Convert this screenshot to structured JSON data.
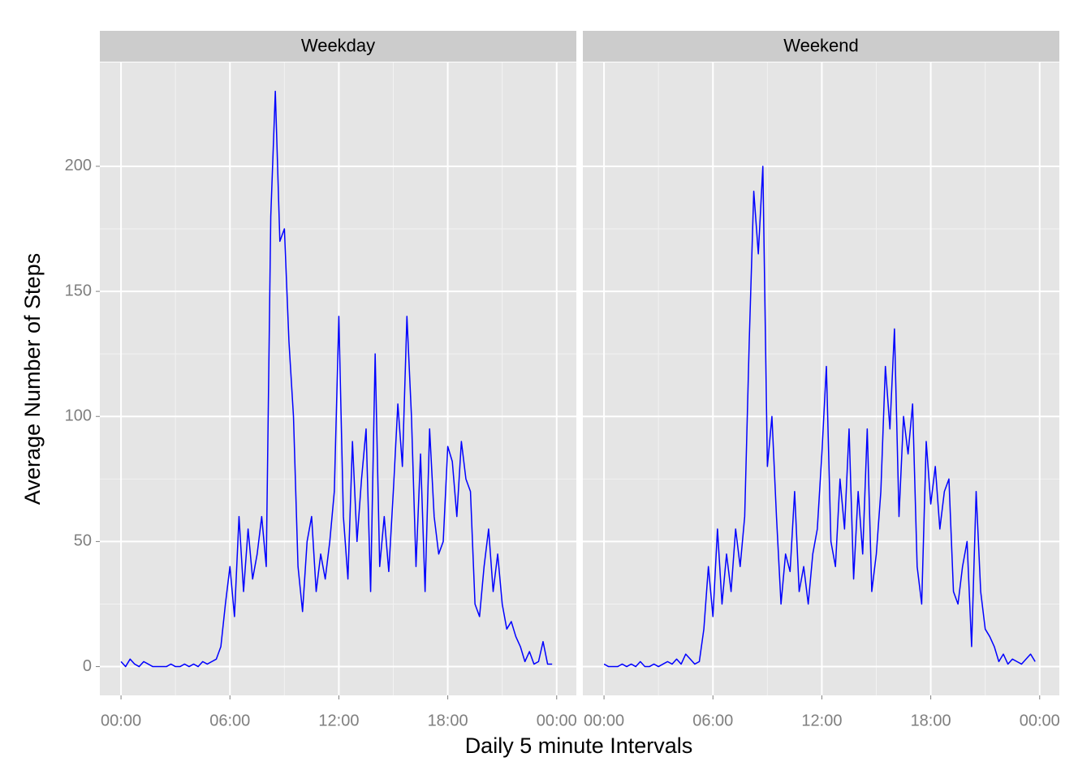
{
  "chart_data": [
    {
      "type": "line",
      "title": "Weekday",
      "xlabel": "Daily 5 minute Intervals",
      "ylabel": "Average Number of Steps",
      "color": "#0000ff",
      "grid": true,
      "xlim": [
        -70,
        1505
      ],
      "ylim": [
        -11.5,
        241.5
      ],
      "xticks": [
        {
          "value": 0,
          "label": "00:00"
        },
        {
          "value": 360,
          "label": "06:00"
        },
        {
          "value": 720,
          "label": "12:00"
        },
        {
          "value": 1080,
          "label": "18:00"
        },
        {
          "value": 1440,
          "label": "00:00"
        }
      ],
      "yticks": [
        0,
        50,
        100,
        150,
        200
      ],
      "x": [
        0,
        15,
        30,
        45,
        60,
        75,
        90,
        105,
        120,
        135,
        150,
        165,
        180,
        195,
        210,
        225,
        240,
        255,
        270,
        285,
        300,
        315,
        330,
        345,
        360,
        375,
        390,
        405,
        420,
        435,
        450,
        465,
        480,
        495,
        510,
        525,
        540,
        555,
        570,
        585,
        600,
        615,
        630,
        645,
        660,
        675,
        690,
        705,
        720,
        735,
        750,
        765,
        780,
        795,
        810,
        825,
        840,
        855,
        870,
        885,
        900,
        915,
        930,
        945,
        960,
        975,
        990,
        1005,
        1020,
        1035,
        1050,
        1065,
        1080,
        1095,
        1110,
        1125,
        1140,
        1155,
        1170,
        1185,
        1200,
        1215,
        1230,
        1245,
        1260,
        1275,
        1290,
        1305,
        1320,
        1335,
        1350,
        1365,
        1380,
        1395,
        1410,
        1425
      ],
      "values": [
        2,
        0,
        3,
        1,
        0,
        2,
        1,
        0,
        0,
        0,
        0,
        1,
        0,
        0,
        1,
        0,
        1,
        0,
        2,
        1,
        2,
        3,
        8,
        25,
        40,
        20,
        60,
        30,
        55,
        35,
        45,
        60,
        40,
        180,
        230,
        170,
        175,
        130,
        100,
        40,
        22,
        50,
        60,
        30,
        45,
        35,
        50,
        70,
        140,
        60,
        35,
        90,
        50,
        75,
        95,
        30,
        125,
        40,
        60,
        38,
        70,
        105,
        80,
        140,
        100,
        40,
        85,
        30,
        95,
        60,
        45,
        50,
        88,
        82,
        60,
        90,
        75,
        70,
        25,
        20,
        40,
        55,
        30,
        45,
        25,
        15,
        18,
        12,
        8,
        2,
        6,
        1,
        2,
        10,
        1,
        1
      ]
    },
    {
      "type": "line",
      "title": "Weekend",
      "color": "#0000ff",
      "grid": true,
      "xlim": [
        -70,
        1505
      ],
      "ylim": [
        -11.5,
        241.5
      ],
      "xticks": [
        {
          "value": 0,
          "label": "00:00"
        },
        {
          "value": 360,
          "label": "06:00"
        },
        {
          "value": 720,
          "label": "12:00"
        },
        {
          "value": 1080,
          "label": "18:00"
        },
        {
          "value": 1440,
          "label": "00:00"
        }
      ],
      "yticks": [
        0,
        50,
        100,
        150,
        200
      ],
      "x": [
        0,
        15,
        30,
        45,
        60,
        75,
        90,
        105,
        120,
        135,
        150,
        165,
        180,
        195,
        210,
        225,
        240,
        255,
        270,
        285,
        300,
        315,
        330,
        345,
        360,
        375,
        390,
        405,
        420,
        435,
        450,
        465,
        480,
        495,
        510,
        525,
        540,
        555,
        570,
        585,
        600,
        615,
        630,
        645,
        660,
        675,
        690,
        705,
        720,
        735,
        750,
        765,
        780,
        795,
        810,
        825,
        840,
        855,
        870,
        885,
        900,
        915,
        930,
        945,
        960,
        975,
        990,
        1005,
        1020,
        1035,
        1050,
        1065,
        1080,
        1095,
        1110,
        1125,
        1140,
        1155,
        1170,
        1185,
        1200,
        1215,
        1230,
        1245,
        1260,
        1275,
        1290,
        1305,
        1320,
        1335,
        1350,
        1365,
        1380,
        1395,
        1410,
        1425
      ],
      "values": [
        1,
        0,
        0,
        0,
        1,
        0,
        1,
        0,
        2,
        0,
        0,
        1,
        0,
        1,
        2,
        1,
        3,
        1,
        5,
        3,
        1,
        2,
        15,
        40,
        20,
        55,
        25,
        45,
        30,
        55,
        40,
        60,
        130,
        190,
        165,
        200,
        80,
        100,
        60,
        25,
        45,
        38,
        70,
        30,
        40,
        25,
        45,
        55,
        85,
        120,
        50,
        40,
        75,
        55,
        95,
        35,
        70,
        45,
        95,
        30,
        45,
        70,
        120,
        95,
        135,
        60,
        100,
        85,
        105,
        40,
        25,
        90,
        65,
        80,
        55,
        70,
        75,
        30,
        25,
        40,
        50,
        8,
        70,
        30,
        15,
        12,
        8,
        2,
        5,
        1,
        3,
        2,
        1,
        3,
        5,
        2
      ]
    }
  ]
}
